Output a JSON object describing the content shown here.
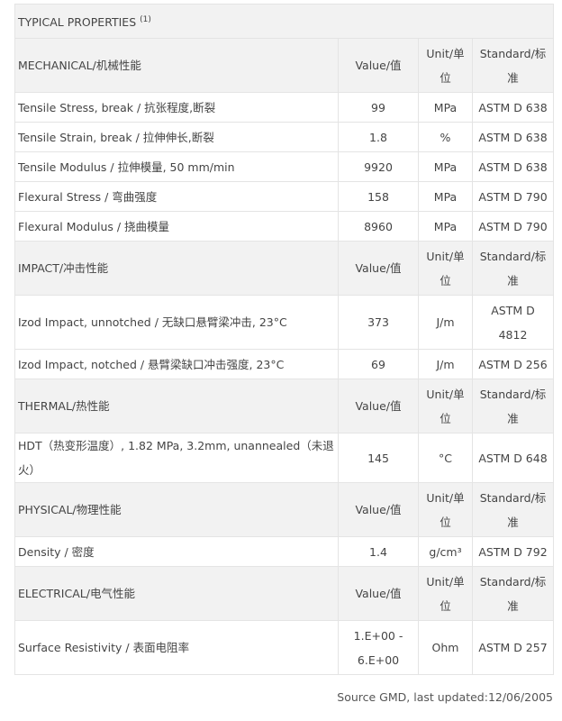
{
  "title": "TYPICAL PROPERTIES",
  "title_note": "(1)",
  "headers": {
    "value": "Value/值",
    "unit": "Unit/单位",
    "standard": "Standard/标准"
  },
  "sections": [
    {
      "name": "MECHANICAL/机械性能",
      "rows": [
        [
          "Tensile Stress, break / 抗张程度,断裂",
          "99",
          "MPa",
          "ASTM D 638"
        ],
        [
          "Tensile Strain, break / 拉伸伸长,断裂",
          "1.8",
          "%",
          "ASTM D 638"
        ],
        [
          "Tensile Modulus / 拉伸模量, 50 mm/min",
          "9920",
          "MPa",
          "ASTM D 638"
        ],
        [
          "Flexural Stress / 弯曲强度",
          "158",
          "MPa",
          "ASTM D 790"
        ],
        [
          "Flexural Modulus / 挠曲模量",
          "8960",
          "MPa",
          "ASTM D 790"
        ]
      ]
    },
    {
      "name": "IMPACT/冲击性能",
      "rows": [
        [
          "Izod Impact, unnotched / 无缺口悬臂梁冲击, 23°C",
          "373",
          "J/m",
          "ASTM D 4812"
        ],
        [
          "Izod Impact, notched / 悬臂梁缺口冲击强度, 23°C",
          "69",
          "J/m",
          "ASTM D 256"
        ]
      ]
    },
    {
      "name": "THERMAL/热性能",
      "rows": [
        [
          "HDT（热变形温度）, 1.82 MPa, 3.2mm, unannealed（未退火）",
          "145",
          "°C",
          "ASTM D 648"
        ]
      ]
    },
    {
      "name": "PHYSICAL/物理性能",
      "rows": [
        [
          "Density / 密度",
          "1.4",
          "g/cm³",
          "ASTM D 792"
        ]
      ]
    },
    {
      "name": "ELECTRICAL/电气性能",
      "rows": [
        [
          "Surface Resistivity / 表面电阻率",
          "1.E+00 - 6.E+00",
          "Ohm",
          "ASTM D 257"
        ]
      ]
    }
  ],
  "source": "Source GMD, last updated:12/06/2005"
}
